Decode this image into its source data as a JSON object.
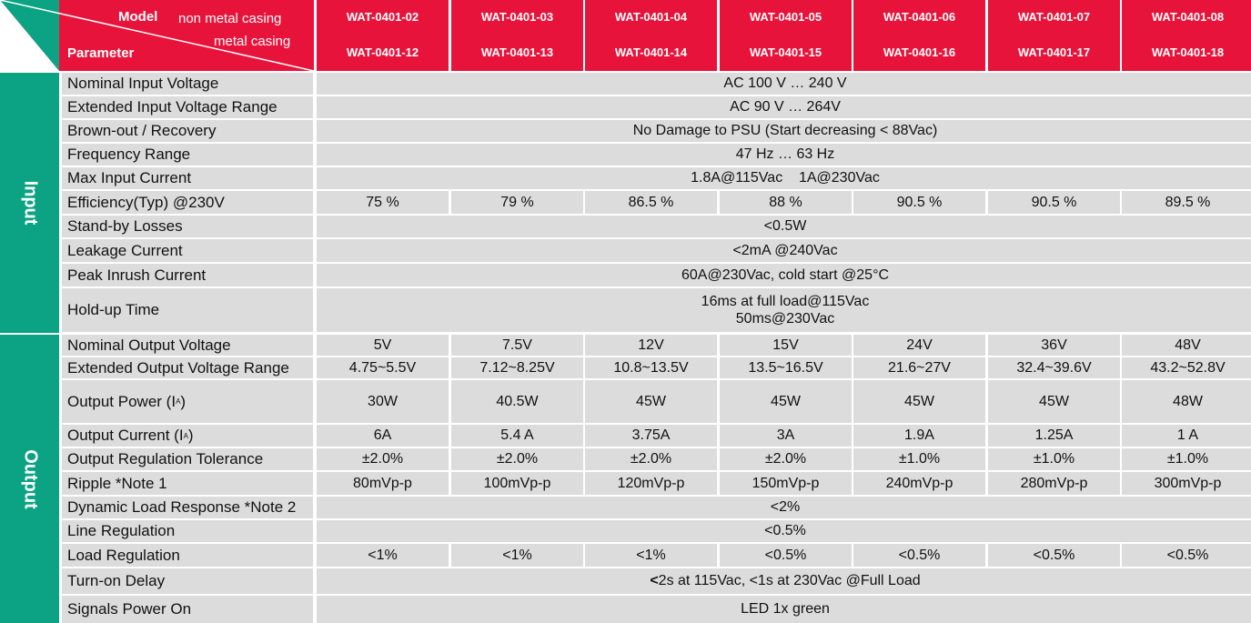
{
  "header": {
    "model_label": "Model",
    "non_metal_label": "non metal casing",
    "metal_label": "metal casing",
    "parameter_label": "Parameter",
    "models_non_metal": [
      "WAT-0401-02",
      "WAT-0401-03",
      "WAT-0401-04",
      "WAT-0401-05",
      "WAT-0401-06",
      "WAT-0401-07",
      "WAT-0401-08"
    ],
    "models_metal": [
      "WAT-0401-12",
      "WAT-0401-13",
      "WAT-0401-14",
      "WAT-0401-15",
      "WAT-0401-16",
      "WAT-0401-17",
      "WAT-0401-18"
    ]
  },
  "sections": {
    "input": "Input",
    "output": "Output"
  },
  "colors": {
    "header_red": "#e8133a",
    "section_green": "#0ba383",
    "cell_grey": "#dcdcdc"
  },
  "rows": [
    {
      "label": "Nominal Input Voltage",
      "span": "AC 100 V … 240 V"
    },
    {
      "label": "Extended Input Voltage Range",
      "span": "AC 90 V … 264V"
    },
    {
      "label": "Brown-out / Recovery",
      "span": "No Damage to PSU (Start decreasing < 88Vac)"
    },
    {
      "label": "Frequency Range",
      "span": "47 Hz … 63 Hz"
    },
    {
      "label": "Max Input Current",
      "span": "1.8A@115Vac    1A@230Vac"
    },
    {
      "label": "Efficiency(Typ) @230V",
      "values": [
        "75 %",
        "79 %",
        "86.5 %",
        "88 %",
        "90.5 %",
        "90.5 %",
        "89.5 %"
      ]
    },
    {
      "label": "Stand-by Losses",
      "span": "<0.5W"
    },
    {
      "label": "Leakage Current",
      "span": "<2mA @240Vac"
    },
    {
      "label": "Peak Inrush Current",
      "span": "60A@230Vac, cold start @25°C"
    },
    {
      "label": "Hold-up Time",
      "span_lines": [
        "16ms at full load@115Vac",
        "50ms@230Vac"
      ]
    },
    {
      "label": "Nominal Output Voltage",
      "values": [
        "5V",
        "7.5V",
        "12V",
        "15V",
        "24V",
        "36V",
        "48V"
      ]
    },
    {
      "label": "Extended Output Voltage Range",
      "values": [
        "4.75~5.5V",
        "7.12~8.25V",
        "10.8~13.5V",
        "13.5~16.5V",
        "21.6~27V",
        "32.4~39.6V",
        "43.2~52.8V"
      ]
    },
    {
      "label": "Output Power (I",
      "label_sub": "A",
      "label_tail": ")",
      "values": [
        "30W",
        "40.5W",
        "45W",
        "45W",
        "45W",
        "45W",
        "48W"
      ]
    },
    {
      "label": "Output Current (I",
      "label_sub": "A",
      "label_tail": ")",
      "values": [
        "6A",
        "5.4 A",
        "3.75A",
        "3A",
        "1.9A",
        "1.25A",
        "1 A"
      ]
    },
    {
      "label": "Output Regulation Tolerance",
      "values": [
        "±2.0%",
        "±2.0%",
        "±2.0%",
        "±2.0%",
        "±1.0%",
        "±1.0%",
        "±1.0%"
      ]
    },
    {
      "label": "Ripple  *Note 1",
      "values": [
        "80mVp-p",
        "100mVp-p",
        "120mVp-p",
        "150mVp-p",
        "240mVp-p",
        "280mVp-p",
        "300mVp-p"
      ]
    },
    {
      "label": "Dynamic Load Response *Note 2",
      "span": "<2%"
    },
    {
      "label": "Line Regulation",
      "span": "<0.5%"
    },
    {
      "label": "Load Regulation",
      "values": [
        "<1%",
        "<1%",
        "<1%",
        "<0.5%",
        "<0.5%",
        "<0.5%",
        "<0.5%"
      ]
    },
    {
      "label": "Turn-on Delay",
      "span_bold_prefix": "<",
      "span": "2s at 115Vac, <1s at 230Vac @Full Load"
    },
    {
      "label": "Signals Power On",
      "span": "LED 1x green"
    }
  ]
}
